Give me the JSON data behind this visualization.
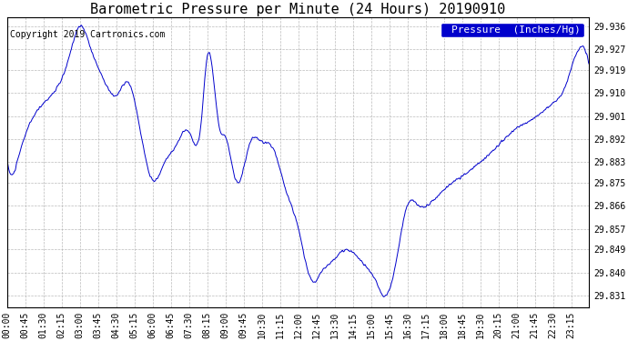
{
  "title": "Barometric Pressure per Minute (24 Hours) 20190910",
  "copyright": "Copyright 2019 Cartronics.com",
  "legend_label": "Pressure  (Inches/Hg)",
  "line_color": "#0000CC",
  "legend_bg": "#0000CC",
  "legend_text_color": "#FFFFFF",
  "background_color": "#FFFFFF",
  "grid_color": "#AAAAAA",
  "yticks": [
    29.831,
    29.84,
    29.849,
    29.857,
    29.866,
    29.875,
    29.883,
    29.892,
    29.901,
    29.91,
    29.919,
    29.927,
    29.936
  ],
  "ylim": [
    29.8265,
    29.9395
  ],
  "xtick_labels": [
    "00:00",
    "00:45",
    "01:30",
    "02:15",
    "03:00",
    "03:45",
    "04:30",
    "05:15",
    "06:00",
    "06:45",
    "07:30",
    "08:15",
    "09:00",
    "09:45",
    "10:30",
    "11:15",
    "12:00",
    "12:45",
    "13:30",
    "14:15",
    "15:00",
    "15:45",
    "16:30",
    "17:15",
    "18:00",
    "18:45",
    "19:30",
    "20:15",
    "21:00",
    "21:45",
    "22:30",
    "23:15"
  ],
  "title_fontsize": 11,
  "copyright_fontsize": 7,
  "tick_fontsize": 7,
  "legend_fontsize": 8,
  "keyframes_t": [
    0,
    0.2,
    0.5,
    1.5,
    2.5,
    3.0,
    3.5,
    4.0,
    4.5,
    5.0,
    6.0,
    6.5,
    7.0,
    7.5,
    8.0,
    8.25,
    8.75,
    9.0,
    9.5,
    10.0,
    10.5,
    11.0,
    11.5,
    12.0,
    12.5,
    12.75,
    13.0,
    13.25,
    13.75,
    14.25,
    14.75,
    15.25,
    15.5,
    15.75,
    16.0,
    16.5,
    17.0,
    17.25,
    18.0,
    18.5,
    19.0,
    19.5,
    20.0,
    20.5,
    21.0,
    21.5,
    22.0,
    22.5,
    23.0,
    23.25,
    24.0
  ],
  "keyframes_v": [
    29.884,
    29.878,
    29.886,
    29.906,
    29.922,
    29.936,
    29.926,
    29.915,
    29.909,
    29.914,
    29.876,
    29.883,
    29.89,
    29.895,
    29.898,
    29.924,
    29.897,
    29.893,
    29.875,
    29.89,
    29.891,
    29.888,
    29.872,
    29.858,
    29.838,
    29.837,
    29.841,
    29.843,
    29.848,
    29.848,
    29.843,
    29.836,
    29.831,
    29.833,
    29.842,
    29.866,
    29.866,
    29.866,
    29.872,
    29.876,
    29.879,
    29.883,
    29.887,
    29.892,
    29.896,
    29.899,
    29.902,
    29.906,
    29.912,
    29.919,
    29.921
  ]
}
